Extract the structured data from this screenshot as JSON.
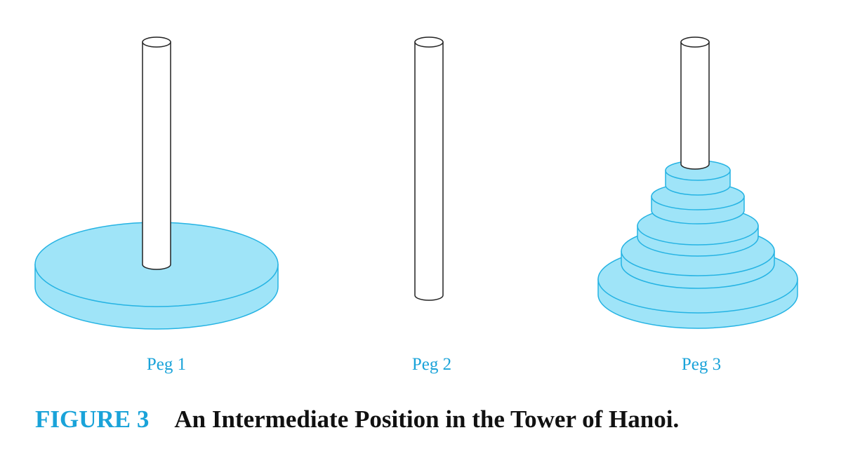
{
  "pegs": [
    {
      "label": "Peg 1",
      "disk_count": 1
    },
    {
      "label": "Peg 2",
      "disk_count": 0
    },
    {
      "label": "Peg 3",
      "disk_count": 5
    }
  ],
  "caption": {
    "label": "FIGURE 3",
    "text": "An Intermediate Position in the Tower of Hanoi."
  },
  "colors": {
    "disk_fill": "#9fe4f8",
    "disk_stroke": "#25b3e3",
    "peg_stroke": "#222222",
    "accent": "#1aa3d9"
  }
}
